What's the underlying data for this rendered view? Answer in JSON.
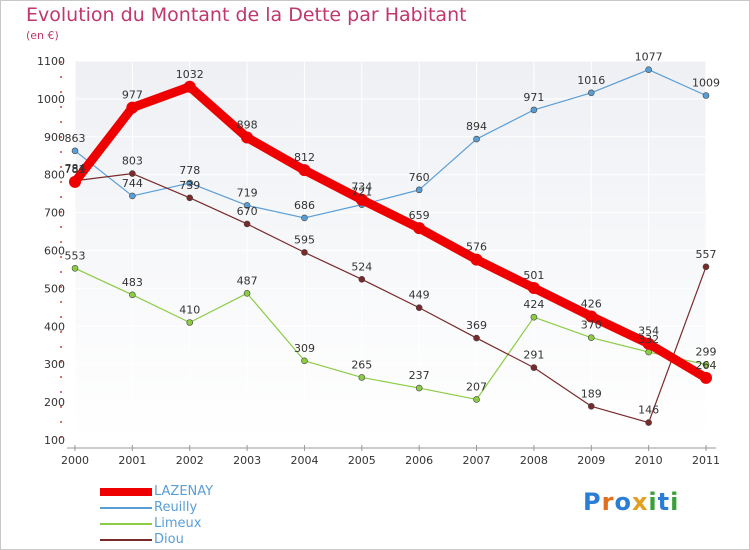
{
  "title": "Evolution du Montant de la Dette par Habitant",
  "subtitle": "(en €)",
  "brand": {
    "text": "Proxiti",
    "letters": [
      {
        "ch": "P",
        "color": "#2a7fd4"
      },
      {
        "ch": "r",
        "color": "#e07020"
      },
      {
        "ch": "o",
        "color": "#2a7fd4"
      },
      {
        "ch": "x",
        "color": "#e0a020"
      },
      {
        "ch": "i",
        "color": "#3aa03a"
      },
      {
        "ch": "t",
        "color": "#2a7fd4"
      },
      {
        "ch": "i",
        "color": "#3aa03a"
      }
    ]
  },
  "chart_data": {
    "type": "line",
    "title": "Evolution du Montant de la Dette par Habitant",
    "subtitle": "(en €)",
    "x": [
      "2000",
      "2001",
      "2002",
      "2003",
      "2004",
      "2005",
      "2006",
      "2007",
      "2008",
      "2009",
      "2010",
      "2011"
    ],
    "ylim": [
      100,
      1100
    ],
    "yticks": [
      100,
      200,
      300,
      400,
      500,
      600,
      700,
      800,
      900,
      1000,
      1100
    ],
    "grid": true,
    "legend_position": "bottom-left",
    "series": [
      {
        "name": "LAZENAY",
        "color": "#ee0000",
        "values": [
          781,
          977,
          1032,
          898,
          812,
          734,
          659,
          576,
          501,
          426,
          354,
          264
        ],
        "labels": [
          "781",
          "977",
          "1032",
          "898",
          "812",
          "734",
          "659",
          "576",
          "501",
          "426",
          "354",
          "264"
        ]
      },
      {
        "name": "Reuilly",
        "color": "#5a9ed6",
        "values": [
          863,
          744,
          778,
          719,
          686,
          721,
          760,
          894,
          971,
          1016,
          1077,
          1009
        ],
        "labels": [
          "863",
          "744",
          "778",
          "719",
          "686",
          "721",
          "760",
          "894",
          "971",
          "1016",
          "1077",
          "1009"
        ]
      },
      {
        "name": "Limeux",
        "color": "#8ccc44",
        "values": [
          553,
          483,
          410,
          487,
          309,
          265,
          237,
          207,
          424,
          370,
          332,
          299
        ],
        "labels": [
          "553",
          "483",
          "410",
          "487",
          "309",
          "265",
          "237",
          "207",
          "424",
          "370",
          "332",
          "299"
        ]
      },
      {
        "name": "Diou",
        "color": "#7a2a2a",
        "values": [
          784,
          803,
          739,
          670,
          595,
          524,
          449,
          369,
          291,
          189,
          146,
          557
        ],
        "labels": [
          "784",
          "803",
          "739",
          "670",
          "595",
          "524",
          "449",
          "369",
          "291",
          "189",
          "146",
          "557"
        ]
      }
    ]
  }
}
